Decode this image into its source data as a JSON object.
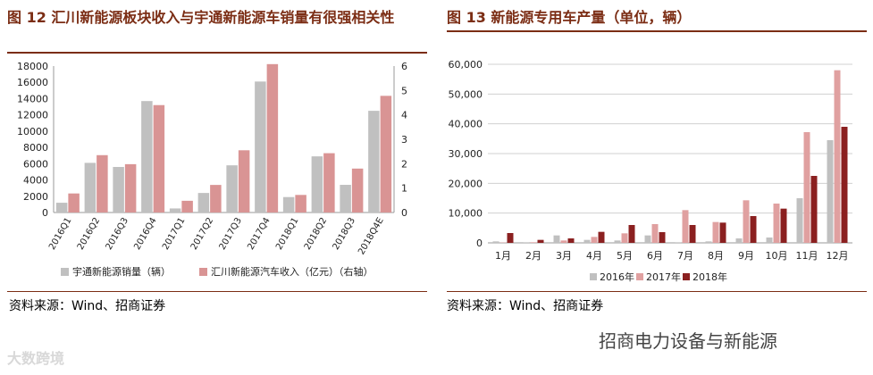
{
  "figure12": {
    "title": "图 12 汇川新能源板块收入与宇通新能源车销量有很强相关性",
    "source": "资料来源：Wind、招商证券"
  },
  "figure13": {
    "title": "图 13 新能源专用车产量（单位，辆）",
    "source": "资料来源：Wind、招商证券"
  },
  "watermark_left": "大数跨境",
  "watermark_right": "招商电力设备与新能源",
  "chart_data": [
    {
      "type": "bar",
      "categories": [
        "2016Q1",
        "2016Q2",
        "2016Q3",
        "2016Q4",
        "2017Q1",
        "2017Q2",
        "2017Q3",
        "2017Q4",
        "2018Q1",
        "2018Q2",
        "2018Q3",
        "2018Q4E"
      ],
      "series": [
        {
          "name": "宇通新能源销量（辆）",
          "axis": "left",
          "color": "#c0c0c0",
          "values": [
            1200,
            6100,
            5600,
            13700,
            500,
            2400,
            5800,
            16100,
            1900,
            6900,
            3400,
            12500
          ]
        },
        {
          "name": "汇川新能源汽车收入（亿元）（右轴）",
          "axis": "right",
          "color": "#d99494",
          "values": [
            0.78,
            2.35,
            1.98,
            4.4,
            0.48,
            1.13,
            2.55,
            6.08,
            0.72,
            2.43,
            1.8,
            4.78
          ]
        }
      ],
      "ylim_left": [
        0,
        18000
      ],
      "yticks_left": [
        "0",
        "2000",
        "4000",
        "6000",
        "8000",
        "10000",
        "12000",
        "14000",
        "16000",
        "18000"
      ],
      "ylim_right": [
        0,
        6
      ],
      "yticks_right": [
        "0",
        "1",
        "2",
        "3",
        "4",
        "5",
        "6"
      ],
      "legend": "bottom",
      "grid": false
    },
    {
      "type": "bar",
      "categories": [
        "1月",
        "2月",
        "3月",
        "4月",
        "5月",
        "6月",
        "7月",
        "8月",
        "9月",
        "10月",
        "11月",
        "12月"
      ],
      "series": [
        {
          "name": "2016年",
          "color": "#c0c0c0",
          "values": [
            500,
            200,
            2500,
            1000,
            800,
            2500,
            200,
            500,
            1500,
            1800,
            15000,
            34500
          ]
        },
        {
          "name": "2017年",
          "color": "#e0a0a0",
          "values": [
            100,
            200,
            800,
            2000,
            3200,
            6300,
            11000,
            7000,
            14300,
            13200,
            37200,
            58000
          ]
        },
        {
          "name": "2018年",
          "color": "#8b2020",
          "values": [
            3300,
            1000,
            1500,
            3700,
            6000,
            3600,
            6000,
            6800,
            9000,
            11500,
            22500,
            39000
          ]
        }
      ],
      "ylim": [
        0,
        60000
      ],
      "yticks": [
        "0",
        "10,000",
        "20,000",
        "30,000",
        "40,000",
        "50,000",
        "60,000"
      ],
      "legend": "bottom",
      "grid": true
    }
  ]
}
